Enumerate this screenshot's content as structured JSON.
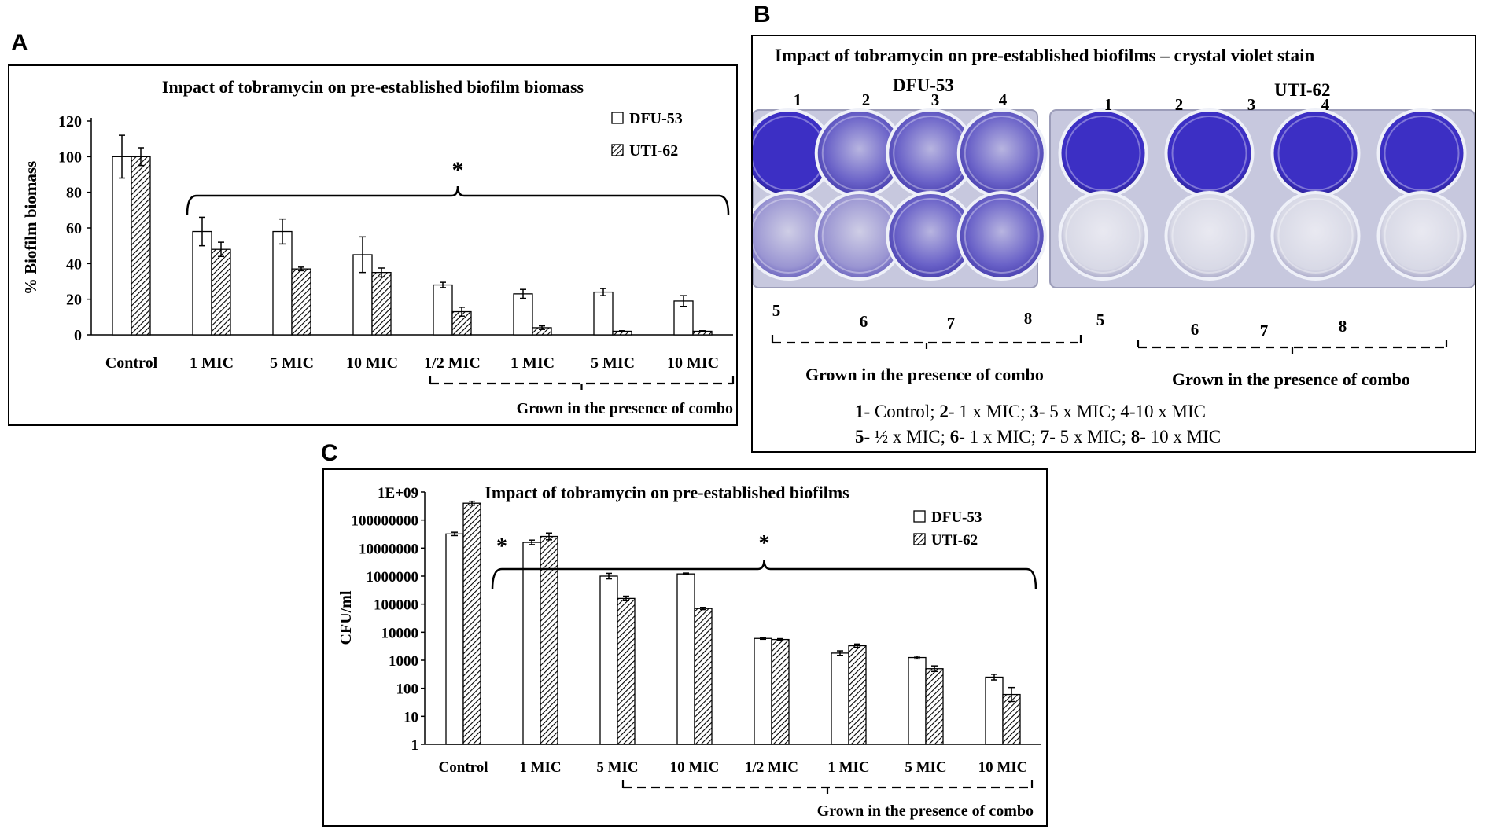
{
  "panels": {
    "a": "A",
    "b": "B",
    "c": "C"
  },
  "chart_data": [
    {
      "panel": "A",
      "type": "bar",
      "title": "Impact of tobramycin on pre-established biofilm biomass",
      "ylabel": "% Biofilm biomass",
      "xlabel": "",
      "ylim": [
        0,
        120
      ],
      "yticks": [
        "0",
        "20",
        "40",
        "60",
        "80",
        "100",
        "120"
      ],
      "categories": [
        "Control",
        "1 MIC",
        "5 MIC",
        "10 MIC",
        "1/2 MIC",
        "1 MIC",
        "5 MIC",
        "10 MIC"
      ],
      "series": [
        {
          "name": "DFU-53",
          "values": [
            100,
            58,
            58,
            45,
            28,
            23,
            24,
            19
          ],
          "errors": [
            12,
            8,
            7,
            10,
            1.5,
            2.5,
            2,
            3
          ]
        },
        {
          "name": "UTI-62",
          "values": [
            100,
            48,
            37,
            35,
            13,
            4,
            2,
            2
          ],
          "errors": [
            5,
            4,
            1,
            2.5,
            2.5,
            1,
            0.3,
            0.3
          ]
        }
      ],
      "annotation": "*",
      "group_label": "Grown in the presence of combo",
      "legend": "top-right"
    },
    {
      "panel": "C",
      "type": "bar",
      "scale": "log",
      "title": "Impact of tobramycin on pre-established biofilms",
      "ylabel": "CFU/ml",
      "xlabel": "",
      "ylim": [
        1,
        1000000000
      ],
      "yticks": [
        "1",
        "10",
        "100",
        "1000",
        "10000",
        "100000",
        "1000000",
        "10000000",
        "100000000",
        "1E+09"
      ],
      "categories": [
        "Control",
        "1 MIC",
        "5 MIC",
        "10 MIC",
        "1/2 MIC",
        "1 MIC",
        "5 MIC",
        "10 MIC"
      ],
      "series": [
        {
          "name": "DFU-53",
          "values": [
            32000000,
            16000000,
            1000000,
            1200000,
            6000,
            1800,
            1250,
            250
          ],
          "errors_log": [
            0.06,
            0.08,
            0.1,
            0.03,
            0.03,
            0.08,
            0.05,
            0.1
          ]
        },
        {
          "name": "UTI-62",
          "values": [
            400000000,
            26000000,
            160000,
            70000,
            5500,
            3300,
            500,
            60
          ],
          "errors_log": [
            0.07,
            0.12,
            0.08,
            0.04,
            0.03,
            0.06,
            0.1,
            0.25
          ]
        }
      ],
      "annotations": [
        "*",
        "*"
      ],
      "group_label": "Grown in the presence of combo",
      "legend": "top-right"
    }
  ],
  "photo": {
    "title": "Impact of tobramycin on pre-established biofilms – crystal violet stain",
    "left_label": "DFU-53",
    "right_label": "UTI-62",
    "top_numbers": [
      "1",
      "2",
      "3",
      "4"
    ],
    "bottom_numbers": [
      "5",
      "6",
      "7",
      "8"
    ],
    "group_label_left": "Grown in the presence of combo",
    "group_label_right": "Grown in the presence of combo",
    "legend_line1": [
      {
        "num": "1",
        "text": "- Control; "
      },
      {
        "num": "2",
        "text": "- 1 x MIC; "
      },
      {
        "num": "3",
        "text": "- 5 x MIC; 4-10 x MIC"
      }
    ],
    "legend_line2": [
      {
        "num": "5",
        "text": "- ½ x MIC; "
      },
      {
        "num": "6",
        "text": "- 1 x MIC; "
      },
      {
        "num": "7",
        "text": "- 5 x MIC; "
      },
      {
        "num": "8",
        "text": "- 10 x MIC"
      }
    ],
    "colors": {
      "plate_bg": "#c7c8de",
      "deep_violet": "#3c2fc4",
      "mid_violet": "#6a62c8",
      "light_violet": "#9a95d2",
      "faint": "#d8d9e6"
    }
  }
}
